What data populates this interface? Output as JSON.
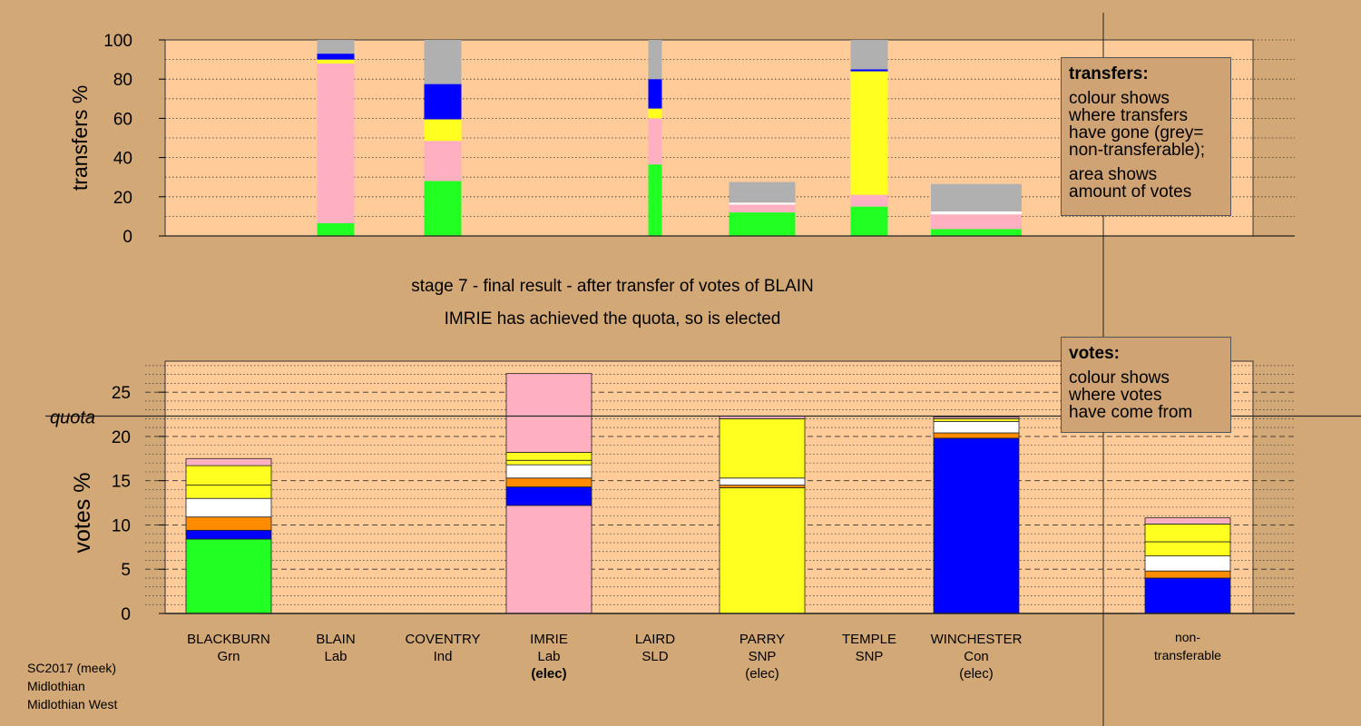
{
  "chart_data": [
    {
      "type": "bar",
      "stacked": true,
      "ylabel": "transfers %",
      "ylim": [
        0,
        100
      ],
      "yticks": [
        0,
        20,
        40,
        60,
        80,
        100
      ],
      "categories": [
        "BLACKBURN",
        "BLAIN",
        "COVENTRY",
        "IMRIE",
        "LAIRD",
        "PARRY",
        "TEMPLE",
        "WINCHESTER"
      ],
      "bars": [
        {
          "category": "BLAIN",
          "segments": [
            {
              "value": 6.5,
              "color": "#22ff22"
            },
            {
              "value": 81.5,
              "color": "#ffb0c0"
            },
            {
              "value": 2,
              "color": "#ffff20"
            },
            {
              "value": 3,
              "color": "#0000ff"
            },
            {
              "value": 7,
              "color": "#b0b0b0"
            }
          ]
        },
        {
          "category": "COVENTRY",
          "segments": [
            {
              "value": 28,
              "color": "#22ff22"
            },
            {
              "value": 20.5,
              "color": "#ffb0c0"
            },
            {
              "value": 11,
              "color": "#ffff20"
            },
            {
              "value": 18,
              "color": "#0000ff"
            },
            {
              "value": 22.5,
              "color": "#b0b0b0"
            }
          ]
        },
        {
          "category": "LAIRD",
          "segments": [
            {
              "value": 36.5,
              "color": "#22ff22"
            },
            {
              "value": 23.5,
              "color": "#ffb0c0"
            },
            {
              "value": 5,
              "color": "#ffff20"
            },
            {
              "value": 15,
              "color": "#0000ff"
            },
            {
              "value": 20,
              "color": "#b0b0b0"
            }
          ]
        },
        {
          "category": "PARRY",
          "segments": [
            {
              "value": 12,
              "color": "#22ff22"
            },
            {
              "value": 4,
              "color": "#ffb0c0"
            },
            {
              "value": 1,
              "color": "#ffffff"
            },
            {
              "value": 10.5,
              "color": "#b0b0b0"
            }
          ]
        },
        {
          "category": "TEMPLE",
          "segments": [
            {
              "value": 15,
              "color": "#22ff22"
            },
            {
              "value": 6,
              "color": "#ffb0c0"
            },
            {
              "value": 63,
              "color": "#ffff20"
            },
            {
              "value": 1,
              "color": "#0000ff"
            },
            {
              "value": 15,
              "color": "#b0b0b0"
            }
          ]
        },
        {
          "category": "WINCHESTER",
          "segments": [
            {
              "value": 3.5,
              "color": "#22ff22"
            },
            {
              "value": 7.5,
              "color": "#ffb0c0"
            },
            {
              "value": 1.5,
              "color": "#ffffff"
            },
            {
              "value": 14,
              "color": "#b0b0b0"
            }
          ]
        }
      ]
    },
    {
      "type": "bar",
      "stacked": true,
      "ylabel": "votes %",
      "ylim": [
        0,
        28.5
      ],
      "yticks": [
        0,
        5,
        10,
        15,
        20,
        25
      ],
      "quota": 22.3,
      "quota_label": "quota",
      "categories": [
        "BLACKBURN",
        "BLAIN",
        "COVENTRY",
        "IMRIE",
        "LAIRD",
        "PARRY",
        "TEMPLE",
        "WINCHESTER",
        "non-transferable"
      ],
      "bars": [
        {
          "category": "BLACKBURN",
          "segments": [
            {
              "value": 8.4,
              "color": "#22ff22"
            },
            {
              "value": 1.0,
              "color": "#0000ff"
            },
            {
              "value": 1.5,
              "color": "#ff8c00"
            },
            {
              "value": 2.1,
              "color": "#ffffff"
            },
            {
              "value": 1.5,
              "color": "#ffff20"
            },
            {
              "value": 2.2,
              "color": "#ffff20"
            },
            {
              "value": 0.8,
              "color": "#ffb0c0"
            }
          ]
        },
        {
          "category": "IMRIE",
          "segments": [
            {
              "value": 12.2,
              "color": "#ffb0c0"
            },
            {
              "value": 2.1,
              "color": "#0000ff"
            },
            {
              "value": 1.0,
              "color": "#ff8c00"
            },
            {
              "value": 1.5,
              "color": "#ffffff"
            },
            {
              "value": 0.5,
              "color": "#ffff20"
            },
            {
              "value": 0.9,
              "color": "#ffff20"
            },
            {
              "value": 8.9,
              "color": "#ffb0c0"
            }
          ]
        },
        {
          "category": "PARRY",
          "segments": [
            {
              "value": 14.2,
              "color": "#ffff20"
            },
            {
              "value": 0.3,
              "color": "#ff8c00"
            },
            {
              "value": 0.8,
              "color": "#ffffff"
            },
            {
              "value": 6.7,
              "color": "#ffff20"
            },
            {
              "value": 0.3,
              "color": "#ffb0c0"
            }
          ]
        },
        {
          "category": "WINCHESTER",
          "segments": [
            {
              "value": 19.8,
              "color": "#0000ff"
            },
            {
              "value": 0.6,
              "color": "#ff8c00"
            },
            {
              "value": 1.3,
              "color": "#ffffff"
            },
            {
              "value": 0.3,
              "color": "#ffff20"
            },
            {
              "value": 0.2,
              "color": "#ffb0c0"
            }
          ]
        },
        {
          "category": "non-transferable",
          "segments": [
            {
              "value": 4.0,
              "color": "#0000ff"
            },
            {
              "value": 0.8,
              "color": "#ff8c00"
            },
            {
              "value": 1.7,
              "color": "#ffffff"
            },
            {
              "value": 1.6,
              "color": "#ffff20"
            },
            {
              "value": 2.0,
              "color": "#ffff20"
            },
            {
              "value": 0.7,
              "color": "#ffb0c0"
            }
          ]
        }
      ]
    }
  ],
  "candidates": [
    {
      "name": "BLACKBURN",
      "party": "Grn",
      "status": ""
    },
    {
      "name": "BLAIN",
      "party": "Lab",
      "status": ""
    },
    {
      "name": "COVENTRY",
      "party": "Ind",
      "status": ""
    },
    {
      "name": "IMRIE",
      "party": "Lab",
      "status": "(elec)",
      "status_bold": true
    },
    {
      "name": "LAIRD",
      "party": "SLD",
      "status": ""
    },
    {
      "name": "PARRY",
      "party": "SNP",
      "status": "(elec)"
    },
    {
      "name": "TEMPLE",
      "party": "SNP",
      "status": ""
    },
    {
      "name": "WINCHESTER",
      "party": "Con",
      "status": "(elec)"
    }
  ],
  "nontransferable_label": {
    "line1": "non-",
    "line2": "transferable"
  },
  "transfers_legend": {
    "title": "transfers:",
    "p1_lines": [
      "colour shows",
      "where transfers",
      "have gone (grey=",
      "non-transferable);"
    ],
    "p2_lines": [
      "area shows",
      "amount of votes"
    ]
  },
  "votes_legend": {
    "title": "votes:",
    "p1_lines": [
      "colour shows",
      "where votes",
      "have come from"
    ]
  },
  "captions": {
    "line1": "stage 7 - final result - after transfer of votes of BLAIN",
    "line2": "IMRIE has achieved the quota, so is elected"
  },
  "footer": {
    "line1": "SC2017 (meek)",
    "line2": "Midlothian",
    "line3": "Midlothian West"
  },
  "colors": {
    "background": "#d3a877",
    "plot_area": "#ffcc99"
  }
}
